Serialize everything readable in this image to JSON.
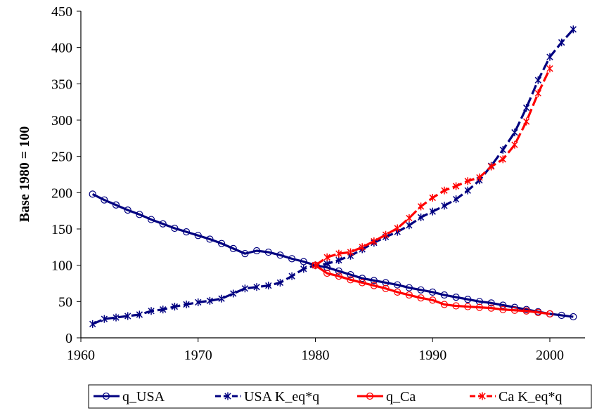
{
  "chart_data": {
    "type": "line",
    "title": "",
    "xlabel": "",
    "ylabel": "Base 1980 = 100",
    "xlim": [
      1960,
      2003
    ],
    "ylim": [
      0,
      450
    ],
    "xticks": [
      1960,
      1970,
      1980,
      1990,
      2000
    ],
    "xtick_labels": [
      "1960",
      "1970",
      "1980",
      "1990",
      "2000"
    ],
    "yticks": [
      0,
      50,
      100,
      150,
      200,
      250,
      300,
      350,
      400,
      450
    ],
    "ytick_labels": [
      "0",
      "50",
      "100",
      "150",
      "200",
      "250",
      "300",
      "350",
      "400",
      "450"
    ],
    "grid": false,
    "legend_position": "bottom",
    "series": [
      {
        "name": "q_USA",
        "color": "#000080",
        "line_style": "solid",
        "marker": "circle",
        "x": [
          1961,
          1962,
          1963,
          1964,
          1965,
          1966,
          1967,
          1968,
          1969,
          1970,
          1971,
          1972,
          1973,
          1974,
          1975,
          1976,
          1977,
          1978,
          1979,
          1980,
          1981,
          1982,
          1983,
          1984,
          1985,
          1986,
          1987,
          1988,
          1989,
          1990,
          1991,
          1992,
          1993,
          1994,
          1995,
          1996,
          1997,
          1998,
          1999,
          2000,
          2001,
          2002
        ],
        "y": [
          198,
          190,
          183,
          176,
          170,
          163,
          157,
          151,
          146,
          141,
          136,
          130,
          123,
          116,
          120,
          118,
          114,
          109,
          105,
          100,
          97,
          92,
          87,
          82,
          79,
          76,
          73,
          69,
          66,
          63,
          59,
          56,
          53,
          50,
          48,
          45,
          42,
          39,
          36,
          33,
          31,
          29
        ]
      },
      {
        "name": "USA K_eq*q",
        "color": "#000080",
        "line_style": "dashed",
        "marker": "asterisk",
        "x": [
          1961,
          1962,
          1963,
          1964,
          1965,
          1966,
          1967,
          1968,
          1969,
          1970,
          1971,
          1972,
          1973,
          1974,
          1975,
          1976,
          1977,
          1978,
          1979,
          1980,
          1981,
          1982,
          1983,
          1984,
          1985,
          1986,
          1987,
          1988,
          1989,
          1990,
          1991,
          1992,
          1993,
          1994,
          1995,
          1996,
          1997,
          1998,
          1999,
          2000,
          2001,
          2002
        ],
        "y": [
          19,
          26,
          28,
          30,
          32,
          37,
          39,
          43,
          46,
          49,
          51,
          54,
          61,
          68,
          70,
          72,
          76,
          85,
          95,
          100,
          102,
          107,
          113,
          122,
          131,
          139,
          146,
          155,
          166,
          174,
          182,
          191,
          203,
          217,
          237,
          259,
          283,
          317,
          355,
          387,
          407,
          425
        ]
      },
      {
        "name": "q_Ca",
        "color": "#ff0000",
        "line_style": "solid",
        "marker": "circle",
        "x": [
          1980,
          1981,
          1982,
          1983,
          1984,
          1985,
          1986,
          1987,
          1988,
          1989,
          1990,
          1991,
          1992,
          1993,
          1994,
          1995,
          1996,
          1997,
          1998,
          1999,
          2000
        ],
        "y": [
          100,
          89,
          85,
          80,
          76,
          72,
          68,
          63,
          59,
          55,
          52,
          46,
          44,
          43,
          42,
          41,
          39,
          38,
          37,
          35,
          33
        ]
      },
      {
        "name": "Ca K_eq*q",
        "color": "#ff0000",
        "line_style": "dashed",
        "marker": "asterisk",
        "x": [
          1980,
          1981,
          1982,
          1983,
          1984,
          1985,
          1986,
          1987,
          1988,
          1989,
          1990,
          1991,
          1992,
          1993,
          1994,
          1995,
          1996,
          1997,
          1998,
          1999,
          2000
        ],
        "y": [
          100,
          111,
          116,
          118,
          125,
          133,
          142,
          151,
          165,
          181,
          193,
          203,
          209,
          216,
          221,
          236,
          246,
          266,
          298,
          337,
          371
        ]
      }
    ]
  }
}
